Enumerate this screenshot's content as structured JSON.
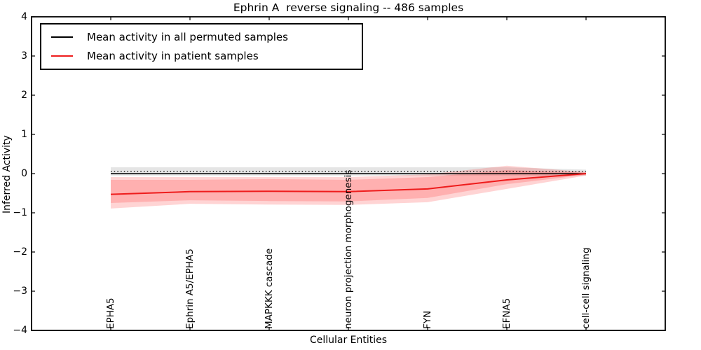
{
  "title": "Ephrin A  reverse signaling -- 486 samples",
  "legend": {
    "entries": [
      {
        "label": "Mean activity in all permuted samples",
        "color": "#000000"
      },
      {
        "label": "Mean activity in patient samples",
        "color": "#ee1c1c"
      }
    ]
  },
  "chart_data": {
    "type": "line",
    "title": "Ephrin A  reverse signaling -- 486 samples",
    "xlabel": "Cellular Entities",
    "ylabel": "Inferred Activity",
    "ylim": [
      -4,
      4
    ],
    "yticks": [
      4,
      3,
      2,
      1,
      0,
      -1,
      -2,
      -3,
      -4
    ],
    "grid": false,
    "legend_position": "upper left",
    "categories": [
      "EPHA5",
      "Ephrin A5/EPHA5",
      "MAPKKK cascade",
      "neuron projection morphogenesis",
      "FYN",
      "EFNA5",
      "cell-cell signaling"
    ],
    "bands": [
      {
        "name": "permuted-samples-band",
        "fill": "rgba(0,0,0,0.10)",
        "upper": [
          0.16,
          0.16,
          0.16,
          0.16,
          0.16,
          0.16,
          0.1
        ],
        "lower": [
          -0.05,
          -0.05,
          -0.05,
          -0.05,
          -0.05,
          -0.05,
          -0.05
        ]
      },
      {
        "name": "patient-samples-band-outer",
        "fill": "rgba(255,0,0,0.17)",
        "upper": [
          -0.09,
          -0.09,
          -0.09,
          -0.09,
          -0.02,
          0.2,
          0.04
        ],
        "lower": [
          -0.89,
          -0.77,
          -0.79,
          -0.8,
          -0.73,
          -0.39,
          -0.05
        ]
      },
      {
        "name": "patient-samples-band-inner",
        "fill": "rgba(255,0,0,0.17)",
        "upper": [
          -0.16,
          -0.16,
          -0.14,
          -0.16,
          -0.09,
          0.09,
          0.02
        ],
        "lower": [
          -0.75,
          -0.68,
          -0.7,
          -0.71,
          -0.62,
          -0.27,
          -0.03
        ]
      }
    ],
    "lines": [
      {
        "name": "zero-reference-dotted",
        "color": "#000000",
        "width": 1.2,
        "dash": "1.5 3.2",
        "values": [
          0.06,
          0.06,
          0.06,
          0.06,
          0.06,
          0.06,
          0.05
        ]
      },
      {
        "name": "mean-permuted-samples",
        "legend": "Mean activity in all permuted samples",
        "color": "#000000",
        "width": 1.6,
        "dash": "",
        "values": [
          0.0,
          0.0,
          0.0,
          0.0,
          0.0,
          0.0,
          0.0
        ]
      },
      {
        "name": "mean-patient-samples",
        "legend": "Mean activity in patient samples",
        "color": "#ee1c1c",
        "width": 2,
        "dash": "",
        "values": [
          -0.53,
          -0.46,
          -0.45,
          -0.46,
          -0.39,
          -0.16,
          0.0
        ]
      }
    ]
  }
}
